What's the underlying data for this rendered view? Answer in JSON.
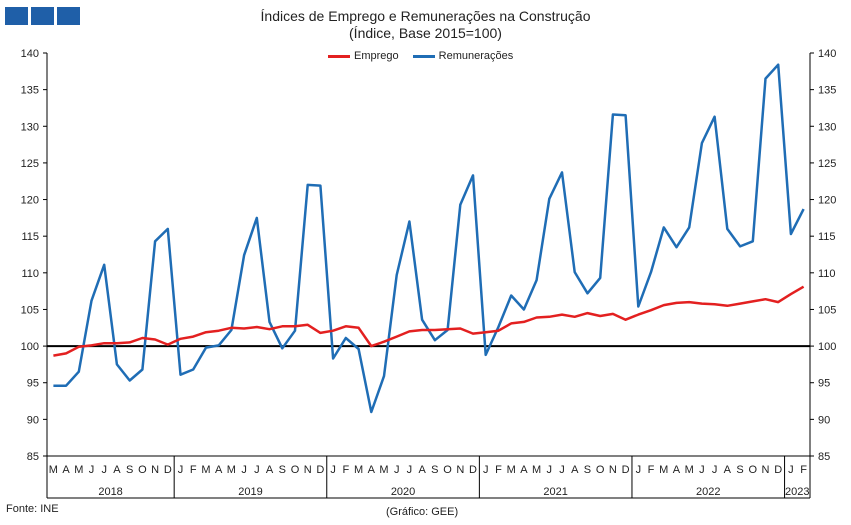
{
  "logo": {
    "color": "#1f5fa8"
  },
  "chart_data": {
    "type": "line",
    "title": "Índices de Emprego e Remunerações na Construção",
    "subtitle": "(Índice, Base 2015=100)",
    "xlabel": "",
    "ylabel": "",
    "ylim": [
      85,
      140
    ],
    "yticks": [
      85,
      90,
      95,
      100,
      105,
      110,
      115,
      120,
      125,
      130,
      135,
      140
    ],
    "grid": false,
    "legend_position": "top-center",
    "reference_line": {
      "value": 100,
      "color": "#000000"
    },
    "x": [
      "2018-03",
      "2018-04",
      "2018-05",
      "2018-06",
      "2018-07",
      "2018-08",
      "2018-09",
      "2018-10",
      "2018-11",
      "2018-12",
      "2019-01",
      "2019-02",
      "2019-03",
      "2019-04",
      "2019-05",
      "2019-06",
      "2019-07",
      "2019-08",
      "2019-09",
      "2019-10",
      "2019-11",
      "2019-12",
      "2020-01",
      "2020-02",
      "2020-03",
      "2020-04",
      "2020-05",
      "2020-06",
      "2020-07",
      "2020-08",
      "2020-09",
      "2020-10",
      "2020-11",
      "2020-12",
      "2021-01",
      "2021-02",
      "2021-03",
      "2021-04",
      "2021-05",
      "2021-06",
      "2021-07",
      "2021-08",
      "2021-09",
      "2021-10",
      "2021-11",
      "2021-12",
      "2022-01",
      "2022-02",
      "2022-03",
      "2022-04",
      "2022-05",
      "2022-06",
      "2022-07",
      "2022-08",
      "2022-09",
      "2022-10",
      "2022-11",
      "2022-12",
      "2023-01",
      "2023-02"
    ],
    "month_labels": [
      "M",
      "A",
      "M",
      "J",
      "J",
      "A",
      "S",
      "O",
      "N",
      "D",
      "J",
      "F",
      "M",
      "A",
      "M",
      "J",
      "J",
      "A",
      "S",
      "O",
      "N",
      "D",
      "J",
      "F",
      "M",
      "A",
      "M",
      "J",
      "J",
      "A",
      "S",
      "O",
      "N",
      "D",
      "J",
      "F",
      "M",
      "A",
      "M",
      "J",
      "J",
      "A",
      "S",
      "O",
      "N",
      "D",
      "J",
      "F",
      "M",
      "A",
      "M",
      "J",
      "J",
      "A",
      "S",
      "O",
      "N",
      "D",
      "J",
      "F"
    ],
    "year_labels": [
      {
        "label": "2018",
        "start": 0,
        "end": 9
      },
      {
        "label": "2019",
        "start": 10,
        "end": 21
      },
      {
        "label": "2020",
        "start": 22,
        "end": 33
      },
      {
        "label": "2021",
        "start": 34,
        "end": 45
      },
      {
        "label": "2022",
        "start": 46,
        "end": 57
      },
      {
        "label": "2023",
        "start": 58,
        "end": 59
      }
    ],
    "series": [
      {
        "name": "Emprego",
        "color": "#e32020",
        "values": [
          98.7,
          99.0,
          99.9,
          100.1,
          100.4,
          100.4,
          100.5,
          101.1,
          100.9,
          100.2,
          101.0,
          101.3,
          101.9,
          102.1,
          102.5,
          102.4,
          102.6,
          102.3,
          102.7,
          102.7,
          102.9,
          101.8,
          102.1,
          102.7,
          102.5,
          100.0,
          100.6,
          101.3,
          102.0,
          102.2,
          102.2,
          102.3,
          102.4,
          101.7,
          101.9,
          102.1,
          103.1,
          103.3,
          103.9,
          104.0,
          104.3,
          104.0,
          104.5,
          104.1,
          104.4,
          103.6,
          104.3,
          104.9,
          105.6,
          105.9,
          106.0,
          105.8,
          105.7,
          105.5,
          105.8,
          106.1,
          106.4,
          106.0,
          107.1,
          108.1
        ]
      },
      {
        "name": "Remunerações",
        "color": "#1f6db5",
        "values": [
          94.6,
          94.6,
          96.5,
          106.2,
          111.1,
          97.5,
          95.3,
          96.8,
          114.3,
          116.0,
          96.1,
          96.8,
          99.8,
          100.1,
          102.2,
          112.4,
          117.5,
          103.3,
          99.7,
          102.1,
          122.0,
          121.9,
          98.3,
          101.1,
          99.6,
          91.0,
          95.9,
          109.7,
          117.0,
          103.6,
          100.8,
          102.2,
          119.3,
          123.3,
          98.8,
          102.6,
          106.9,
          105.0,
          109.0,
          120.1,
          123.7,
          110.1,
          107.2,
          109.3,
          131.6,
          131.5,
          105.4,
          110.1,
          116.2,
          113.5,
          116.2,
          127.7,
          131.3,
          116.0,
          113.6,
          114.3,
          136.5,
          138.4,
          115.3,
          118.7
        ]
      }
    ]
  },
  "footer": {
    "source": "Fonte: INE",
    "credit": "(Gráfico: GEE)"
  }
}
